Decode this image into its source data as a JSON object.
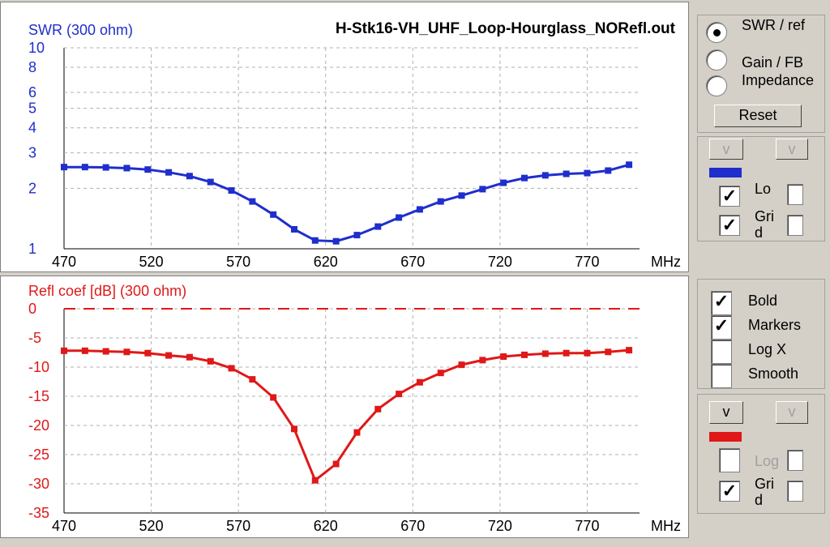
{
  "colors": {
    "swr": "#1f2ecc",
    "refl": "#e01818",
    "grid": "#b0b0b0"
  },
  "top_chart": {
    "title": "H-Stk16-VH_UHF_Loop-Hourglass_NORefl.out"
  },
  "radio_group": [
    {
      "label": "SWR / ref",
      "selected": true
    },
    {
      "label": "Gain / FB",
      "selected": false
    },
    {
      "label": "Impedance",
      "selected": false
    }
  ],
  "reset_label": "Reset",
  "top_options": {
    "v_left": "v",
    "v_right": "v",
    "log_label": "Lo",
    "log_checked": true,
    "grid_label": "Gri d",
    "grid_checked": true
  },
  "style_options": [
    {
      "label": "Bold",
      "checked": true
    },
    {
      "label": "Markers",
      "checked": true
    },
    {
      "label": "Log X",
      "checked": false
    },
    {
      "label": "Smooth",
      "checked": false
    }
  ],
  "bottom_options": {
    "v_left": "v",
    "v_right": "v",
    "log_label": "Log",
    "log_checked": false,
    "grid_label": "Gri d",
    "grid_checked": true
  },
  "chart_data": [
    {
      "type": "line",
      "title": "H-Stk16-VH_UHF_Loop-Hourglass_NORefl.out",
      "ylabel": "SWR (300 ohm)",
      "xlabel": "MHz",
      "log_y": true,
      "xlim": [
        470,
        800
      ],
      "ylim": [
        1,
        10
      ],
      "x_ticks": [
        470,
        520,
        570,
        620,
        670,
        720,
        770
      ],
      "y_ticks": [
        1,
        2,
        3,
        4,
        5,
        6,
        8,
        10
      ],
      "grid": true,
      "series": [
        {
          "x": [
            470,
            482,
            494,
            506,
            518,
            530,
            542,
            554,
            566,
            578,
            590,
            602,
            614,
            626,
            638,
            650,
            662,
            674,
            686,
            698,
            710,
            722,
            734,
            746,
            758,
            770,
            782,
            794
          ],
          "y": [
            2.55,
            2.55,
            2.54,
            2.52,
            2.48,
            2.4,
            2.3,
            2.15,
            1.95,
            1.72,
            1.48,
            1.25,
            1.1,
            1.09,
            1.17,
            1.29,
            1.43,
            1.57,
            1.72,
            1.84,
            1.98,
            2.13,
            2.25,
            2.32,
            2.36,
            2.38,
            2.45,
            2.62
          ]
        }
      ]
    },
    {
      "type": "line",
      "ylabel": "Refl coef [dB] (300 ohm)",
      "xlabel": "MHz",
      "xlim": [
        470,
        800
      ],
      "ylim": [
        -35,
        0
      ],
      "x_ticks": [
        470,
        520,
        570,
        620,
        670,
        720,
        770
      ],
      "y_ticks": [
        0,
        -5,
        -10,
        -15,
        -20,
        -25,
        -30,
        -35
      ],
      "grid": true,
      "series": [
        {
          "x": [
            470,
            482,
            494,
            506,
            518,
            530,
            542,
            554,
            566,
            578,
            590,
            602,
            614,
            626,
            638,
            650,
            662,
            674,
            686,
            698,
            710,
            722,
            734,
            746,
            758,
            770,
            782,
            794
          ],
          "y": [
            -7.2,
            -7.2,
            -7.3,
            -7.4,
            -7.6,
            -8.0,
            -8.3,
            -9.0,
            -10.2,
            -12.1,
            -15.2,
            -20.6,
            -29.4,
            -26.6,
            -21.2,
            -17.2,
            -14.6,
            -12.6,
            -11.0,
            -9.6,
            -8.8,
            -8.2,
            -7.9,
            -7.7,
            -7.6,
            -7.6,
            -7.4,
            -7.1
          ]
        }
      ]
    }
  ]
}
